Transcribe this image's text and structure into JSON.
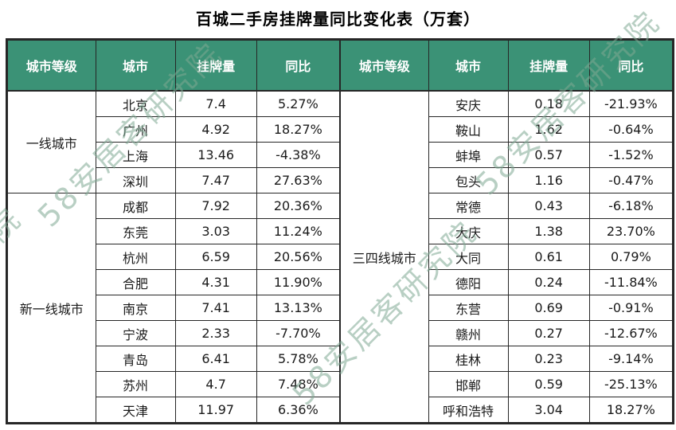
{
  "title": "百城二手房挂牌量同比变化表（万套）",
  "watermark": {
    "text": "58安居客研究院"
  },
  "colors": {
    "header_bg": "#3B9276",
    "header_text": "#FFFFFF",
    "border": "#262626",
    "watermark": "#7FA893"
  },
  "chart_data": {
    "type": "table",
    "title": "百城二手房挂牌量同比变化表（万套）",
    "unit": "万套",
    "columns": [
      "城市等级",
      "城市",
      "挂牌量",
      "同比"
    ],
    "left": {
      "groups": [
        {
          "tier": "一线城市",
          "rows": [
            [
              "北京",
              "7.4",
              "5.27%"
            ],
            [
              "广州",
              "4.92",
              "18.27%"
            ],
            [
              "上海",
              "13.46",
              "-4.38%"
            ],
            [
              "深圳",
              "7.47",
              "27.63%"
            ]
          ]
        },
        {
          "tier": "新一线城市",
          "rows": [
            [
              "成都",
              "7.92",
              "20.36%"
            ],
            [
              "东莞",
              "3.03",
              "11.24%"
            ],
            [
              "杭州",
              "6.59",
              "20.56%"
            ],
            [
              "合肥",
              "4.31",
              "11.90%"
            ],
            [
              "南京",
              "7.41",
              "13.13%"
            ],
            [
              "宁波",
              "2.33",
              "-7.70%"
            ],
            [
              "青岛",
              "6.41",
              "5.78%"
            ],
            [
              "苏州",
              "4.7",
              "7.48%"
            ],
            [
              "天津",
              "11.97",
              "6.36%"
            ]
          ]
        }
      ]
    },
    "right": {
      "groups": [
        {
          "tier": "三四线城市",
          "rows": [
            [
              "安庆",
              "0.18",
              "-21.93%"
            ],
            [
              "鞍山",
              "1.62",
              "-0.64%"
            ],
            [
              "蚌埠",
              "0.57",
              "-1.52%"
            ],
            [
              "包头",
              "1.16",
              "-0.47%"
            ],
            [
              "常德",
              "0.43",
              "-6.18%"
            ],
            [
              "大庆",
              "1.38",
              "23.70%"
            ],
            [
              "大同",
              "0.61",
              "0.79%"
            ],
            [
              "德阳",
              "0.24",
              "-11.84%"
            ],
            [
              "东营",
              "0.69",
              "-0.91%"
            ],
            [
              "赣州",
              "0.27",
              "-12.67%"
            ],
            [
              "桂林",
              "0.23",
              "-9.14%"
            ],
            [
              "邯郸",
              "0.59",
              "-25.13%"
            ],
            [
              "呼和浩特",
              "3.04",
              "18.27%"
            ]
          ]
        }
      ]
    }
  }
}
